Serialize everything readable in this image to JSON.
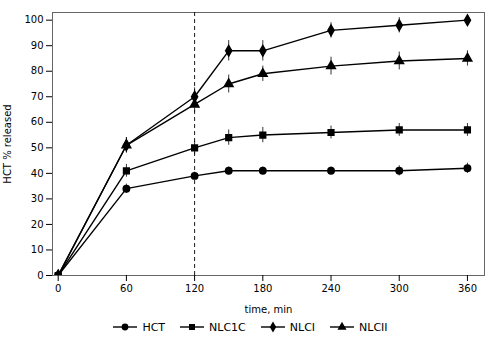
{
  "chart_data": {
    "type": "line",
    "xlabel": "time, min",
    "ylabel": "HCT % released",
    "x": [
      0,
      60,
      120,
      150,
      180,
      240,
      300,
      360
    ],
    "series": [
      {
        "name": "HCT",
        "color": "#000000",
        "marker": "circle",
        "line_style": "solid",
        "values": [
          0,
          34,
          39,
          41,
          41,
          41,
          41,
          42
        ],
        "errors": [
          0,
          1.8,
          1.5,
          1.5,
          1.5,
          1.5,
          2.0,
          2.0
        ]
      },
      {
        "name": "NLC1C",
        "color": "#000000",
        "marker": "square",
        "line_style": "solid",
        "values": [
          0,
          41,
          50,
          54,
          55,
          56,
          57,
          57
        ],
        "errors": [
          0,
          2.5,
          2.5,
          3.0,
          3.0,
          2.5,
          2.5,
          2.5
        ]
      },
      {
        "name": "NLCI",
        "color": "#000000",
        "marker": "diamond",
        "line_style": "solid",
        "values": [
          0,
          51,
          70,
          88,
          88,
          96,
          98,
          100
        ],
        "errors": [
          0,
          3.0,
          3.5,
          4.0,
          4.0,
          3.0,
          3.0,
          2.0
        ]
      },
      {
        "name": "NLCII",
        "color": "#000000",
        "marker": "triangle",
        "line_style": "solid",
        "values": [
          0,
          51,
          67,
          75,
          79,
          82,
          84,
          85
        ],
        "errors": [
          0,
          3.0,
          3.0,
          3.5,
          3.0,
          3.5,
          3.5,
          3.0
        ]
      }
    ],
    "reference_lines": [
      {
        "x": 120,
        "color": "#000000",
        "line_style": "dashed"
      }
    ],
    "xlim": [
      -5,
      375
    ],
    "ylim": [
      0,
      103
    ],
    "xticks": [
      0,
      60,
      120,
      180,
      240,
      300,
      360
    ],
    "yticks": [
      0,
      10,
      20,
      30,
      40,
      50,
      60,
      70,
      80,
      90,
      100
    ],
    "grid": false,
    "legend": "bottom"
  }
}
